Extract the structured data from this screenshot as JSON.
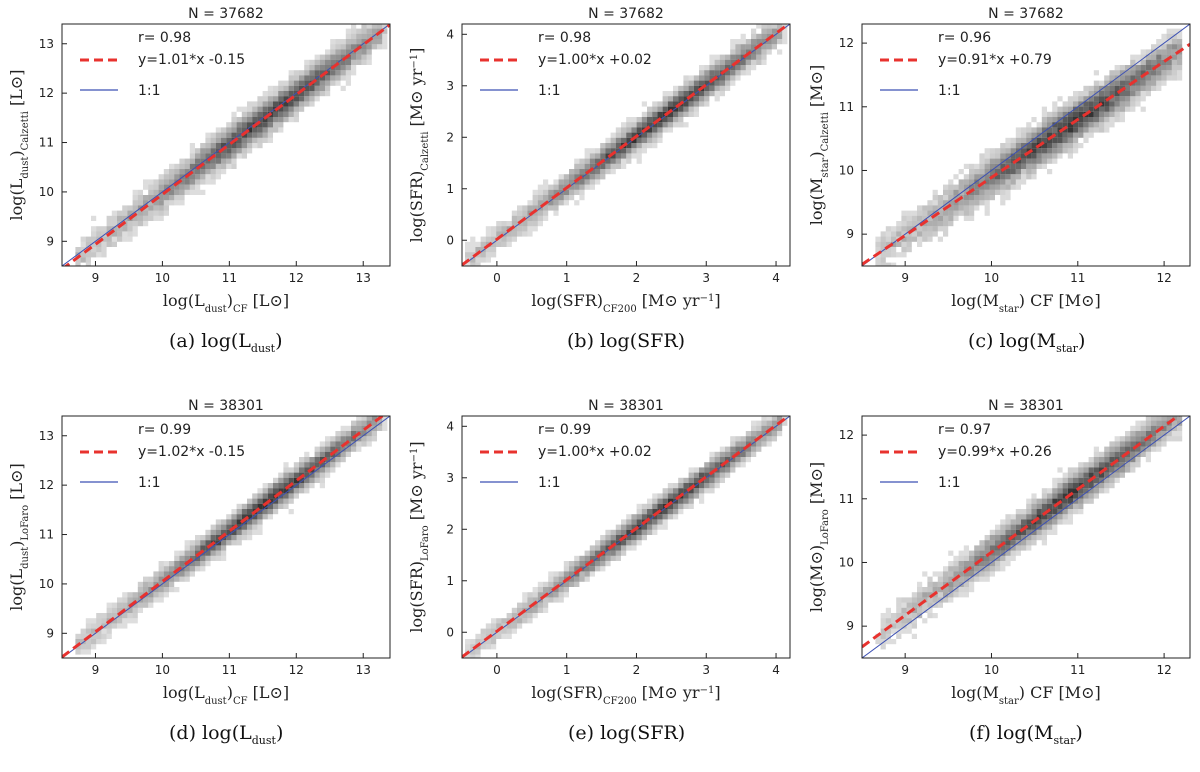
{
  "colors": {
    "fit": "#e8322e",
    "oneToOne": "#3c50b4",
    "density": "#222222"
  },
  "chart_data": [
    {
      "type": "scatter",
      "caption": "(a) log(L_dust)",
      "n_label": "N = 37682",
      "xlabel": "log(L_dust)_CF [L_sun]",
      "ylabel": "log(L_dust)_Calzetti [L_sun]",
      "xlim": [
        8.5,
        13.4
      ],
      "ylim": [
        8.5,
        13.4
      ],
      "xticks": [
        9,
        10,
        11,
        12,
        13
      ],
      "yticks": [
        9,
        10,
        11,
        12,
        13
      ],
      "legend": {
        "r": "r= 0.98",
        "fit": "y=1.01*x -0.15",
        "one_to_one": "1:1"
      },
      "fit_line": {
        "slope": 1.01,
        "intercept": -0.15
      },
      "density_ridge": {
        "x_range": [
          8.7,
          13.3
        ],
        "slope": 1.01,
        "intercept": -0.15,
        "width": 0.28
      }
    },
    {
      "type": "scatter",
      "caption": "(b) log(SFR)",
      "n_label": "N = 37682",
      "xlabel": "log(SFR)_CF200 [M_sun yr^-1]",
      "ylabel": "log(SFR)_Calzetti [M_sun yr^-1]",
      "xlim": [
        -0.5,
        4.2
      ],
      "ylim": [
        -0.5,
        4.2
      ],
      "xticks": [
        0,
        1,
        2,
        3,
        4
      ],
      "yticks": [
        0,
        1,
        2,
        3,
        4
      ],
      "legend": {
        "r": "r= 0.98",
        "fit": "y=1.00*x +0.02",
        "one_to_one": "1:1"
      },
      "fit_line": {
        "slope": 1.0,
        "intercept": 0.02
      },
      "density_ridge": {
        "x_range": [
          -0.4,
          4.1
        ],
        "slope": 1.0,
        "intercept": 0.02,
        "width": 0.22
      }
    },
    {
      "type": "scatter",
      "caption": "(c) log(M_star)",
      "n_label": "N = 37682",
      "xlabel": "log(M_star) CF [M_sun]",
      "ylabel": "log(M_star)_Calzetti [M_sun]",
      "xlim": [
        8.5,
        12.3
      ],
      "ylim": [
        8.5,
        12.3
      ],
      "xticks": [
        9,
        10,
        11,
        12
      ],
      "yticks": [
        9,
        10,
        11,
        12
      ],
      "legend": {
        "r": "r= 0.96",
        "fit": "y=0.91*x +0.79",
        "one_to_one": "1:1"
      },
      "fit_line": {
        "slope": 0.91,
        "intercept": 0.79
      },
      "density_ridge": {
        "x_range": [
          8.7,
          12.2
        ],
        "slope": 0.91,
        "intercept": 0.79,
        "width": 0.26
      }
    },
    {
      "type": "scatter",
      "caption": "(d) log(L_dust)",
      "n_label": "N = 38301",
      "xlabel": "log(L_dust)_CF [L_sun]",
      "ylabel": "log(L_dust)_LoFaro [L_sun]",
      "xlim": [
        8.5,
        13.4
      ],
      "ylim": [
        8.5,
        13.4
      ],
      "xticks": [
        9,
        10,
        11,
        12,
        13
      ],
      "yticks": [
        9,
        10,
        11,
        12,
        13
      ],
      "legend": {
        "r": "r= 0.99",
        "fit": "y=1.02*x -0.15",
        "one_to_one": "1:1"
      },
      "fit_line": {
        "slope": 1.02,
        "intercept": -0.15
      },
      "density_ridge": {
        "x_range": [
          8.7,
          13.3
        ],
        "slope": 1.02,
        "intercept": -0.15,
        "width": 0.22
      }
    },
    {
      "type": "scatter",
      "caption": "(e) log(SFR)",
      "n_label": "N = 38301",
      "xlabel": "log(SFR)_CF200 [M_sun yr^-1]",
      "ylabel": "log(SFR)_LoFaro [M_sun yr^-1]",
      "xlim": [
        -0.5,
        4.2
      ],
      "ylim": [
        -0.5,
        4.2
      ],
      "xticks": [
        0,
        1,
        2,
        3,
        4
      ],
      "yticks": [
        0,
        1,
        2,
        3,
        4
      ],
      "legend": {
        "r": "r= 0.99",
        "fit": "y=1.00*x +0.02",
        "one_to_one": "1:1"
      },
      "fit_line": {
        "slope": 1.0,
        "intercept": 0.02
      },
      "density_ridge": {
        "x_range": [
          -0.4,
          4.1
        ],
        "slope": 1.0,
        "intercept": 0.02,
        "width": 0.2
      }
    },
    {
      "type": "scatter",
      "caption": "(f) log(M_star)",
      "n_label": "N = 38301",
      "xlabel": "log(M_star) CF [M_sun]",
      "ylabel": "log(M_sun)_LoFaro [M_sun]",
      "xlim": [
        8.5,
        12.3
      ],
      "ylim": [
        8.5,
        12.3
      ],
      "xticks": [
        9,
        10,
        11,
        12
      ],
      "yticks": [
        9,
        10,
        11,
        12
      ],
      "legend": {
        "r": "r= 0.97",
        "fit": "y=0.99*x +0.26",
        "one_to_one": "1:1"
      },
      "fit_line": {
        "slope": 0.99,
        "intercept": 0.26
      },
      "density_ridge": {
        "x_range": [
          8.7,
          12.2
        ],
        "slope": 0.99,
        "intercept": 0.26,
        "width": 0.22
      }
    }
  ]
}
